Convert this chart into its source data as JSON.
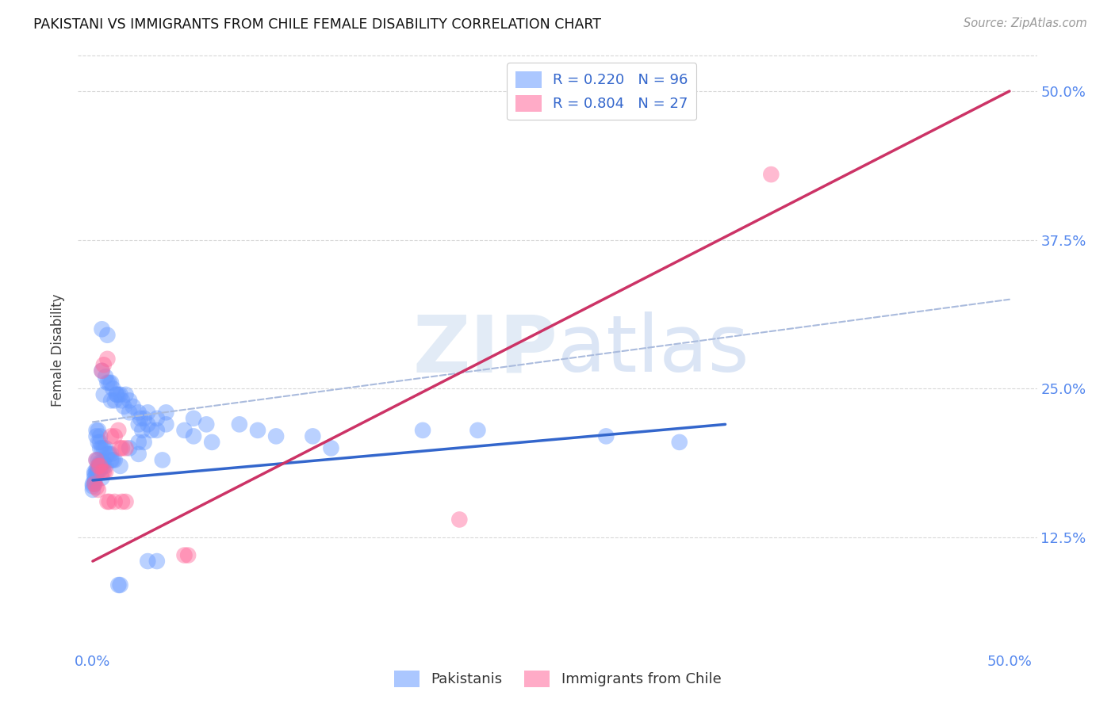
{
  "title": "PAKISTANI VS IMMIGRANTS FROM CHILE FEMALE DISABILITY CORRELATION CHART",
  "source": "Source: ZipAtlas.com",
  "ylabel": "Female Disability",
  "watermark": "ZIPatlas",
  "blue_R": 0.22,
  "blue_N": 96,
  "pink_R": 0.804,
  "pink_N": 27,
  "blue_color": "#6699ff",
  "pink_color": "#ff6699",
  "blue_scatter": [
    [
      0.005,
      0.3
    ],
    [
      0.008,
      0.295
    ],
    [
      0.005,
      0.265
    ],
    [
      0.008,
      0.255
    ],
    [
      0.007,
      0.26
    ],
    [
      0.009,
      0.255
    ],
    [
      0.01,
      0.255
    ],
    [
      0.011,
      0.25
    ],
    [
      0.006,
      0.245
    ],
    [
      0.01,
      0.24
    ],
    [
      0.013,
      0.245
    ],
    [
      0.014,
      0.245
    ],
    [
      0.012,
      0.24
    ],
    [
      0.013,
      0.245
    ],
    [
      0.015,
      0.245
    ],
    [
      0.016,
      0.24
    ],
    [
      0.018,
      0.245
    ],
    [
      0.017,
      0.235
    ],
    [
      0.02,
      0.24
    ],
    [
      0.02,
      0.23
    ],
    [
      0.022,
      0.235
    ],
    [
      0.025,
      0.23
    ],
    [
      0.026,
      0.225
    ],
    [
      0.028,
      0.225
    ],
    [
      0.03,
      0.23
    ],
    [
      0.025,
      0.22
    ],
    [
      0.027,
      0.215
    ],
    [
      0.03,
      0.22
    ],
    [
      0.032,
      0.215
    ],
    [
      0.035,
      0.215
    ],
    [
      0.04,
      0.22
    ],
    [
      0.05,
      0.215
    ],
    [
      0.055,
      0.21
    ],
    [
      0.065,
      0.205
    ],
    [
      0.002,
      0.215
    ],
    [
      0.003,
      0.215
    ],
    [
      0.002,
      0.21
    ],
    [
      0.004,
      0.21
    ],
    [
      0.003,
      0.205
    ],
    [
      0.004,
      0.205
    ],
    [
      0.004,
      0.2
    ],
    [
      0.005,
      0.2
    ],
    [
      0.006,
      0.2
    ],
    [
      0.007,
      0.2
    ],
    [
      0.008,
      0.195
    ],
    [
      0.009,
      0.195
    ],
    [
      0.01,
      0.195
    ],
    [
      0.01,
      0.19
    ],
    [
      0.011,
      0.19
    ],
    [
      0.012,
      0.19
    ],
    [
      0.002,
      0.19
    ],
    [
      0.003,
      0.19
    ],
    [
      0.004,
      0.188
    ],
    [
      0.005,
      0.188
    ],
    [
      0.006,
      0.188
    ],
    [
      0.003,
      0.185
    ],
    [
      0.004,
      0.185
    ],
    [
      0.005,
      0.185
    ],
    [
      0.006,
      0.185
    ],
    [
      0.007,
      0.185
    ],
    [
      0.002,
      0.182
    ],
    [
      0.003,
      0.182
    ],
    [
      0.004,
      0.182
    ],
    [
      0.001,
      0.18
    ],
    [
      0.002,
      0.18
    ],
    [
      0.003,
      0.18
    ],
    [
      0.001,
      0.178
    ],
    [
      0.002,
      0.178
    ],
    [
      0.001,
      0.175
    ],
    [
      0.001,
      0.172
    ],
    [
      0.001,
      0.17
    ],
    [
      0.0,
      0.17
    ],
    [
      0.0,
      0.168
    ],
    [
      0.0,
      0.165
    ],
    [
      0.02,
      0.2
    ],
    [
      0.025,
      0.205
    ],
    [
      0.028,
      0.205
    ],
    [
      0.035,
      0.225
    ],
    [
      0.04,
      0.23
    ],
    [
      0.055,
      0.225
    ],
    [
      0.062,
      0.22
    ],
    [
      0.08,
      0.22
    ],
    [
      0.09,
      0.215
    ],
    [
      0.1,
      0.21
    ],
    [
      0.12,
      0.21
    ],
    [
      0.13,
      0.2
    ],
    [
      0.014,
      0.085
    ],
    [
      0.015,
      0.085
    ],
    [
      0.03,
      0.105
    ],
    [
      0.035,
      0.105
    ],
    [
      0.18,
      0.215
    ],
    [
      0.21,
      0.215
    ],
    [
      0.28,
      0.21
    ],
    [
      0.32,
      0.205
    ],
    [
      0.005,
      0.175
    ],
    [
      0.015,
      0.185
    ],
    [
      0.025,
      0.195
    ],
    [
      0.038,
      0.19
    ]
  ],
  "pink_scatter": [
    [
      0.005,
      0.265
    ],
    [
      0.006,
      0.27
    ],
    [
      0.008,
      0.275
    ],
    [
      0.01,
      0.21
    ],
    [
      0.012,
      0.21
    ],
    [
      0.014,
      0.215
    ],
    [
      0.015,
      0.2
    ],
    [
      0.016,
      0.2
    ],
    [
      0.018,
      0.2
    ],
    [
      0.002,
      0.19
    ],
    [
      0.003,
      0.185
    ],
    [
      0.004,
      0.185
    ],
    [
      0.005,
      0.18
    ],
    [
      0.006,
      0.18
    ],
    [
      0.007,
      0.18
    ],
    [
      0.001,
      0.17
    ],
    [
      0.002,
      0.167
    ],
    [
      0.003,
      0.165
    ],
    [
      0.008,
      0.155
    ],
    [
      0.009,
      0.155
    ],
    [
      0.012,
      0.155
    ],
    [
      0.016,
      0.155
    ],
    [
      0.018,
      0.155
    ],
    [
      0.05,
      0.11
    ],
    [
      0.052,
      0.11
    ],
    [
      0.2,
      0.14
    ],
    [
      0.37,
      0.43
    ]
  ],
  "blue_line_x": [
    0.0,
    0.345
  ],
  "blue_line_y": [
    0.173,
    0.22
  ],
  "pink_line_x": [
    0.0,
    0.5
  ],
  "pink_line_y": [
    0.105,
    0.5
  ],
  "dashed_line_x": [
    0.0,
    0.5
  ],
  "dashed_line_y": [
    0.222,
    0.325
  ],
  "background_color": "#ffffff",
  "grid_color": "#d8d8d8",
  "xlim_min": -0.008,
  "xlim_max": 0.515,
  "ylim_min": 0.03,
  "ylim_max": 0.535,
  "ytick_positions": [
    0.125,
    0.25,
    0.375,
    0.5
  ],
  "ytick_labels": [
    "12.5%",
    "25.0%",
    "37.5%",
    "50.0%"
  ],
  "xtick_positions": [
    0.0,
    0.125,
    0.25,
    0.375,
    0.5
  ],
  "xtick_show": [
    "0.0%",
    "",
    "",
    "",
    "50.0%"
  ]
}
